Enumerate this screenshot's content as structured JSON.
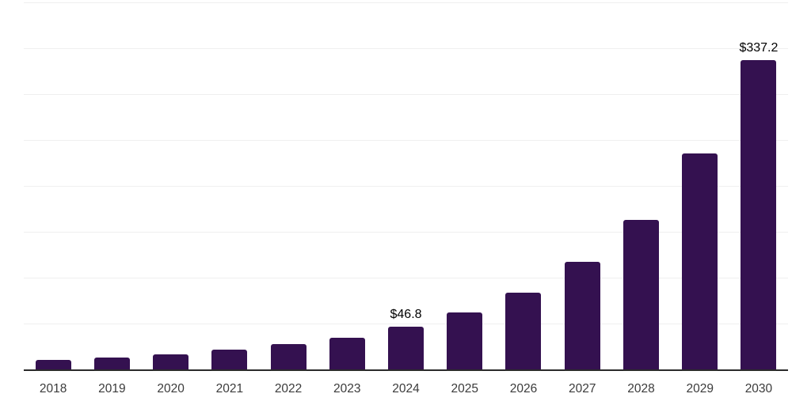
{
  "chart_data": {
    "type": "bar",
    "title": "",
    "xlabel": "",
    "ylabel": "",
    "categories": [
      "2018",
      "2019",
      "2020",
      "2021",
      "2022",
      "2023",
      "2024",
      "2025",
      "2026",
      "2027",
      "2028",
      "2029",
      "2030"
    ],
    "values": [
      10.3,
      12.9,
      16.0,
      21.8,
      27.3,
      34.3,
      46.8,
      62.0,
      84.0,
      117.0,
      163.0,
      235.0,
      337.2
    ],
    "data_labels": [
      null,
      null,
      null,
      null,
      null,
      null,
      "$46.8",
      null,
      null,
      null,
      null,
      null,
      "$337.2"
    ],
    "ylim": [
      0,
      400
    ],
    "gridline_step": 50,
    "grid": "horizontal",
    "legend": "none",
    "currency_prefix": "$"
  },
  "colors": {
    "bar": "#341150",
    "gridline": "#efefef",
    "axis_line": "#2b2b2b",
    "value_label": "#000000",
    "tick_label": "#3b3b3b",
    "background": "#ffffff"
  }
}
